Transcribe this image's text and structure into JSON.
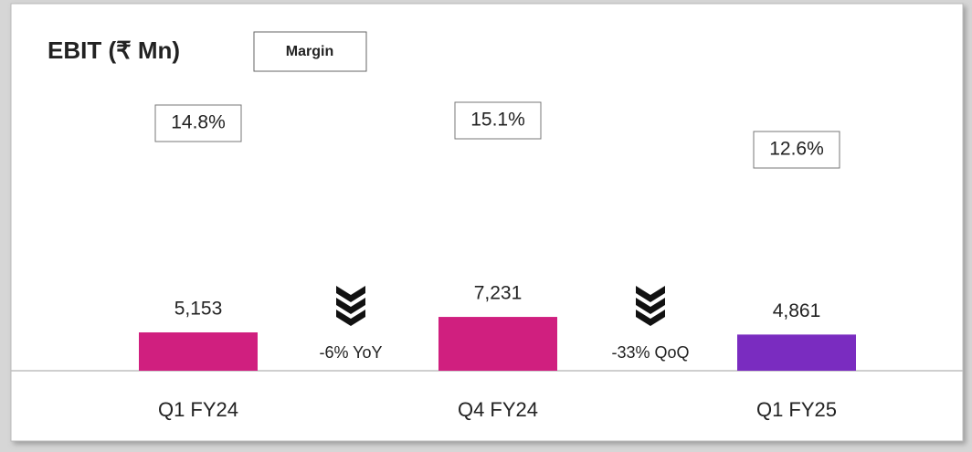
{
  "chart_data": {
    "type": "bar",
    "title": "EBIT (₹ Mn)",
    "legend_label": "Margin",
    "categories": [
      "Q1 FY24",
      "Q4 FY24",
      "Q1 FY25"
    ],
    "values": [
      5153,
      7231,
      4861
    ],
    "value_labels": [
      "5,153",
      "7,231",
      "4,861"
    ],
    "colors": [
      "#d01f7f",
      "#d01f7f",
      "#7a2cc0"
    ],
    "margins": [
      "14.8%",
      "15.1%",
      "12.6%"
    ],
    "changes": [
      "-6% YoY",
      "-33% QoQ"
    ]
  }
}
